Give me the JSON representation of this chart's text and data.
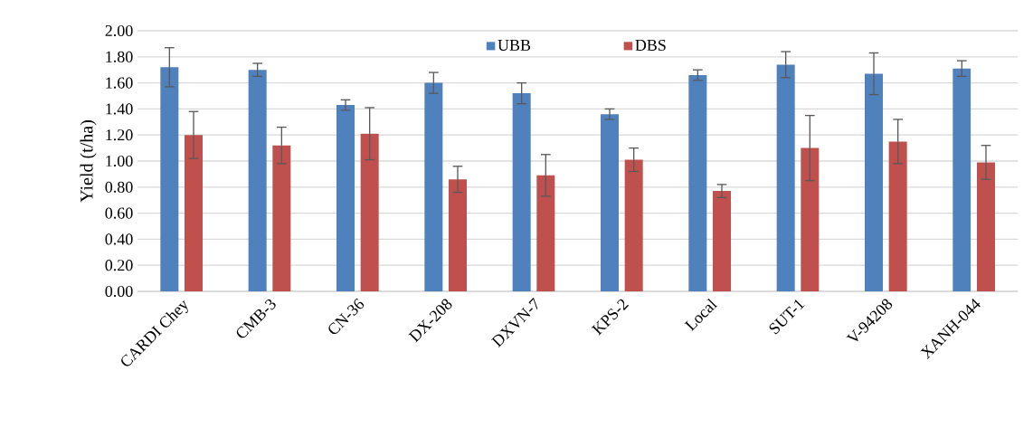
{
  "chart_data": {
    "type": "bar",
    "ylabel": "Yield (t/ha)",
    "categories": [
      "CARDI Chey",
      "CMB-3",
      "CN-36",
      "DX-208",
      "DXVN-7",
      "KPS-2",
      "Local",
      "SUT-1",
      "V-94208",
      "XANH-044"
    ],
    "series": [
      {
        "name": "UBB",
        "color": "#4f81bd",
        "values": [
          1.72,
          1.7,
          1.43,
          1.6,
          1.52,
          1.36,
          1.66,
          1.74,
          1.67,
          1.71
        ],
        "errors": [
          0.15,
          0.05,
          0.04,
          0.08,
          0.08,
          0.04,
          0.04,
          0.1,
          0.16,
          0.06
        ]
      },
      {
        "name": "DBS",
        "color": "#c0504d",
        "values": [
          1.2,
          1.12,
          1.21,
          0.86,
          0.89,
          1.01,
          0.77,
          1.1,
          1.15,
          0.99
        ],
        "errors": [
          0.18,
          0.14,
          0.2,
          0.1,
          0.16,
          0.09,
          0.05,
          0.25,
          0.17,
          0.13
        ]
      }
    ],
    "ylim": [
      0,
      2
    ],
    "yticks": [
      {
        "value": 0,
        "label": "0.00"
      },
      {
        "value": 0.2,
        "label": "0.20"
      },
      {
        "value": 0.4,
        "label": "0.40"
      },
      {
        "value": 0.6,
        "label": "0.60"
      },
      {
        "value": 0.8,
        "label": "0.80"
      },
      {
        "value": 1.0,
        "label": "1.00"
      },
      {
        "value": 1.2,
        "label": "1.20"
      },
      {
        "value": 1.4,
        "label": "1.40"
      },
      {
        "value": 1.6,
        "label": "1.60"
      },
      {
        "value": 1.8,
        "label": "1.80"
      },
      {
        "value": 2.0,
        "label": "2.00"
      }
    ],
    "grid": "y",
    "legend": "top"
  }
}
